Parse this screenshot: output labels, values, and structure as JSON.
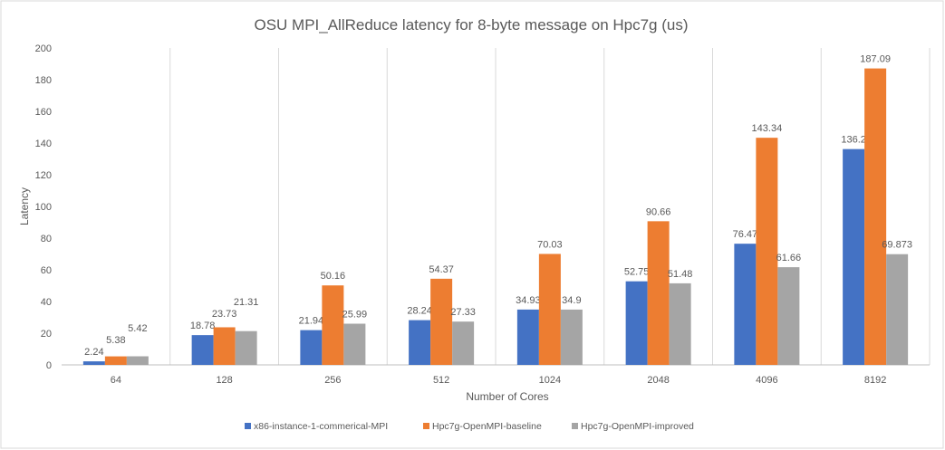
{
  "chart_data": {
    "type": "bar",
    "title": "OSU MPI_AllReduce latency for 8-byte message on Hpc7g (us)",
    "xlabel": "Number of Cores",
    "ylabel": "Latency",
    "ylim": [
      0,
      200
    ],
    "yticks": [
      0,
      20,
      40,
      60,
      80,
      100,
      120,
      140,
      160,
      180,
      200
    ],
    "grid": "vertical category separators",
    "legend": "bottom",
    "categories": [
      "64",
      "128",
      "256",
      "512",
      "1024",
      "2048",
      "4096",
      "8192"
    ],
    "series": [
      {
        "name": "x86-instance-1-commerical-MPI",
        "color": "#4472C4",
        "values": [
          2.24,
          18.78,
          21.94,
          28.24,
          34.93,
          52.75,
          76.47,
          136.2
        ]
      },
      {
        "name": "Hpc7g-OpenMPI-baseline",
        "color": "#ED7D31",
        "values": [
          5.38,
          23.73,
          50.16,
          54.37,
          70.03,
          90.66,
          143.34,
          187.09
        ]
      },
      {
        "name": "Hpc7g-OpenMPI-improved",
        "color": "#A5A5A5",
        "values": [
          5.42,
          21.31,
          25.99,
          27.33,
          34.9,
          51.48,
          61.66,
          69.873
        ]
      }
    ]
  }
}
